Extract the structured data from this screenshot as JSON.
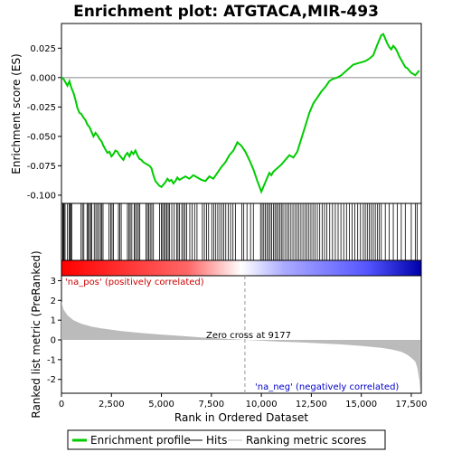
{
  "chart_data": {
    "type": "line",
    "title": "Enrichment plot: ATGTACA,MIR-493",
    "xlabel": "Rank in Ordered Dataset",
    "es_panel": {
      "ylabel": "Enrichment score (ES)",
      "ylim": [
        -0.107,
        0.046
      ],
      "yticks": [
        0.025,
        0.0,
        -0.025,
        -0.05,
        -0.075,
        -0.1
      ],
      "ytick_labels": [
        "0.025",
        "0.000",
        "-0.025",
        "-0.050",
        "-0.075",
        "-0.100"
      ]
    },
    "rank_panel": {
      "ylabel": "Ranked list metric (PreRanked)",
      "ylim": [
        -2.7,
        3.25
      ],
      "yticks": [
        3,
        2,
        1,
        0,
        -1,
        -2
      ],
      "ytick_labels": [
        "3",
        "2",
        "1",
        "0",
        "-1",
        "-2"
      ]
    },
    "xlim": [
      0,
      18000
    ],
    "xticks": [
      0,
      2500,
      5000,
      7500,
      10000,
      12500,
      15000,
      17500
    ],
    "xtick_labels": [
      "0",
      "2,500",
      "5,000",
      "7,500",
      "10,000",
      "12,500",
      "15,000",
      "17,500"
    ],
    "series": [
      {
        "name": "Enrichment profile",
        "color": "#00cc00",
        "x": [
          0,
          100,
          200,
          300,
          400,
          500,
          600,
          700,
          800,
          900,
          1000,
          1100,
          1200,
          1300,
          1400,
          1500,
          1600,
          1700,
          1800,
          1900,
          2000,
          2100,
          2200,
          2300,
          2400,
          2500,
          2600,
          2700,
          2800,
          2900,
          3000,
          3100,
          3200,
          3300,
          3400,
          3500,
          3600,
          3700,
          3800,
          3900,
          4000,
          4100,
          4200,
          4300,
          4400,
          4500,
          4600,
          4700,
          4800,
          4900,
          5000,
          5100,
          5200,
          5300,
          5400,
          5500,
          5600,
          5700,
          5800,
          5900,
          6000,
          6200,
          6400,
          6600,
          6800,
          7000,
          7200,
          7400,
          7600,
          7800,
          8000,
          8200,
          8400,
          8600,
          8800,
          9000,
          9200,
          9400,
          9600,
          9800,
          10000,
          10100,
          10200,
          10300,
          10400,
          10500,
          10600,
          10800,
          11000,
          11200,
          11400,
          11600,
          11800,
          12000,
          12200,
          12400,
          12600,
          12800,
          13000,
          13200,
          13400,
          13600,
          13800,
          14000,
          14200,
          14400,
          14600,
          14800,
          15000,
          15200,
          15400,
          15600,
          15800,
          15900,
          16000,
          16100,
          16200,
          16300,
          16400,
          16500,
          16600,
          16700,
          16800,
          16900,
          17000,
          17100,
          17200,
          17300,
          17400,
          17500,
          17600,
          17700,
          17800,
          17900
        ],
        "y": [
          0.0,
          -0.001,
          -0.004,
          -0.007,
          -0.003,
          -0.009,
          -0.013,
          -0.019,
          -0.026,
          -0.03,
          -0.031,
          -0.034,
          -0.036,
          -0.04,
          -0.042,
          -0.046,
          -0.05,
          -0.047,
          -0.049,
          -0.052,
          -0.054,
          -0.058,
          -0.061,
          -0.064,
          -0.063,
          -0.067,
          -0.065,
          -0.062,
          -0.063,
          -0.066,
          -0.068,
          -0.07,
          -0.066,
          -0.064,
          -0.067,
          -0.063,
          -0.065,
          -0.062,
          -0.066,
          -0.069,
          -0.07,
          -0.072,
          -0.073,
          -0.074,
          -0.075,
          -0.077,
          -0.083,
          -0.088,
          -0.09,
          -0.092,
          -0.093,
          -0.091,
          -0.089,
          -0.086,
          -0.088,
          -0.087,
          -0.09,
          -0.088,
          -0.085,
          -0.087,
          -0.086,
          -0.084,
          -0.086,
          -0.083,
          -0.085,
          -0.087,
          -0.088,
          -0.084,
          -0.086,
          -0.081,
          -0.076,
          -0.072,
          -0.066,
          -0.062,
          -0.055,
          -0.058,
          -0.063,
          -0.07,
          -0.078,
          -0.088,
          -0.097,
          -0.093,
          -0.089,
          -0.085,
          -0.081,
          -0.083,
          -0.08,
          -0.077,
          -0.074,
          -0.07,
          -0.066,
          -0.068,
          -0.063,
          -0.052,
          -0.041,
          -0.03,
          -0.022,
          -0.017,
          -0.012,
          -0.008,
          -0.003,
          -0.001,
          0.0,
          0.002,
          0.005,
          0.008,
          0.011,
          0.012,
          0.013,
          0.014,
          0.016,
          0.019,
          0.028,
          0.032,
          0.036,
          0.037,
          0.033,
          0.029,
          0.026,
          0.024,
          0.027,
          0.025,
          0.022,
          0.018,
          0.015,
          0.012,
          0.009,
          0.008,
          0.006,
          0.004,
          0.003,
          0.002,
          0.004,
          0.006
        ]
      },
      {
        "name": "Hits",
        "color": "#000000",
        "positions": [
          60,
          90,
          130,
          180,
          300,
          380,
          420,
          470,
          510,
          980,
          1050,
          1120,
          1280,
          1340,
          1400,
          1460,
          1520,
          1640,
          1720,
          1800,
          1880,
          1960,
          2020,
          2080,
          2380,
          2460,
          2530,
          2600,
          2850,
          2920,
          2990,
          3300,
          3380,
          3440,
          3520,
          3640,
          3700,
          3780,
          3850,
          3920,
          4230,
          4300,
          4370,
          4440,
          4520,
          4600,
          4910,
          5000,
          5060,
          5130,
          5200,
          5270,
          5340,
          5410,
          5520,
          5640,
          5760,
          5830,
          5900,
          6020,
          6100,
          6180,
          6260,
          6420,
          6540,
          6660,
          6780,
          7050,
          7150,
          7260,
          7360,
          7520,
          7620,
          7720,
          7820,
          7920,
          8020,
          8120,
          8220,
          8340,
          8460,
          8580,
          8700,
          9020,
          9120,
          9280,
          9460,
          9600,
          9960,
          10040,
          10120,
          10200,
          10280,
          10360,
          10440,
          10520,
          10600,
          10680,
          10760,
          10840,
          10920,
          11000,
          11080,
          11180,
          11280,
          11380,
          11480,
          11580,
          11680,
          11780,
          11880,
          11980,
          12080,
          12180,
          12280,
          12380,
          12480,
          12580,
          12680,
          12800,
          12920,
          13040,
          13160,
          13280,
          13420,
          13560,
          13700,
          13840,
          13980,
          14120,
          14260,
          14400,
          14540,
          14680,
          14820,
          14960,
          15100,
          15200,
          15300,
          15400,
          15500,
          15600,
          15700,
          15800,
          15900,
          16000,
          16200,
          16400,
          16600,
          16800,
          17000,
          17200,
          17500,
          17700,
          17800
        ]
      },
      {
        "name": "Ranking metric scores",
        "color": "#bbbbbb",
        "x": [
          0,
          100,
          300,
          600,
          1000,
          1500,
          2000,
          3000,
          4000,
          5000,
          6000,
          7000,
          8000,
          9177,
          10000,
          11000,
          12000,
          13000,
          14000,
          15000,
          16000,
          16500,
          17000,
          17300,
          17500,
          17700,
          17800,
          17900,
          17950
        ],
        "y": [
          1.95,
          1.55,
          1.25,
          1.0,
          0.82,
          0.68,
          0.58,
          0.45,
          0.35,
          0.27,
          0.2,
          0.13,
          0.07,
          0.0,
          -0.04,
          -0.09,
          -0.13,
          -0.18,
          -0.23,
          -0.3,
          -0.4,
          -0.48,
          -0.6,
          -0.75,
          -0.9,
          -1.1,
          -1.4,
          -2.0,
          -2.6
        ]
      }
    ],
    "zero_cross_label": "Zero cross at 9177",
    "zero_cross_rank": 9177,
    "pos_label": "'na_pos' (positively correlated)",
    "neg_label": "'na_neg' (negatively correlated)",
    "legend_placement": "bottom",
    "colors": {
      "profile": "#00cc00",
      "hits": "#000000",
      "metric": "#bbbbbb",
      "pos_text": "#cc0000",
      "neg_text": "#0000cc"
    }
  }
}
